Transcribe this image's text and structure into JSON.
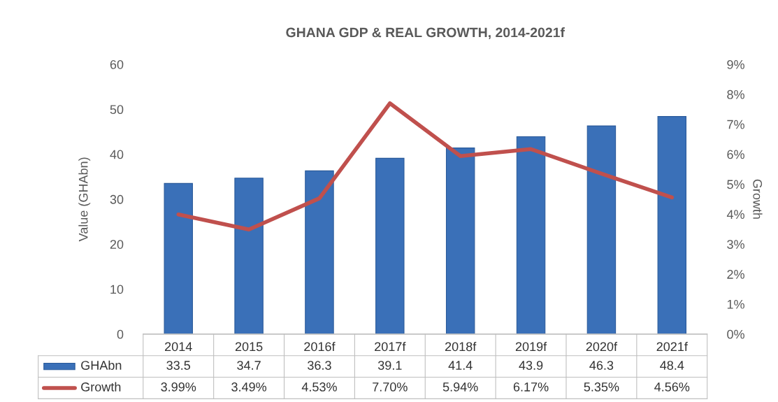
{
  "chart_data": {
    "type": "bar",
    "title": "GHANA GDP & REAL GROWTH, 2014-2021f",
    "ylabel": "Value (GHAbn)",
    "y2label": "Growth",
    "categories": [
      "2014",
      "2015",
      "2016f",
      "2017f",
      "2018f",
      "2019f",
      "2020f",
      "2021f"
    ],
    "series": [
      {
        "name": "GHAbn",
        "color": "#3a70b8",
        "values": [
          33.5,
          34.7,
          36.3,
          39.1,
          41.4,
          43.9,
          46.3,
          48.4
        ],
        "value_labels": [
          "33.5",
          "34.7",
          "36.3",
          "39.1",
          "41.4",
          "43.9",
          "46.3",
          "48.4"
        ]
      },
      {
        "name": "Growth",
        "type": "line",
        "axis": "y2",
        "color": "#c0504d",
        "values": [
          3.99,
          3.49,
          4.53,
          7.7,
          5.94,
          6.17,
          5.35,
          4.56
        ],
        "value_labels": [
          "3.99%",
          "3.49%",
          "4.53%",
          "7.70%",
          "5.94%",
          "6.17%",
          "5.35%",
          "4.56%"
        ]
      }
    ],
    "ylim": [
      0,
      60
    ],
    "yticks": [
      0,
      10,
      20,
      30,
      40,
      50,
      60
    ],
    "y2lim": [
      0,
      9
    ],
    "y2ticks": [
      {
        "value": 0,
        "label": "0%"
      },
      {
        "value": 1,
        "label": "1%"
      },
      {
        "value": 2,
        "label": "2%"
      },
      {
        "value": 3,
        "label": "3%"
      },
      {
        "value": 4,
        "label": "4%"
      },
      {
        "value": 5,
        "label": "5%"
      },
      {
        "value": 6,
        "label": "6%"
      },
      {
        "value": 7,
        "label": "7%"
      },
      {
        "value": 8,
        "label": "8%"
      },
      {
        "value": 9,
        "label": "9%"
      }
    ],
    "legend": "bottom",
    "marker": "none",
    "line_style": "solid"
  }
}
